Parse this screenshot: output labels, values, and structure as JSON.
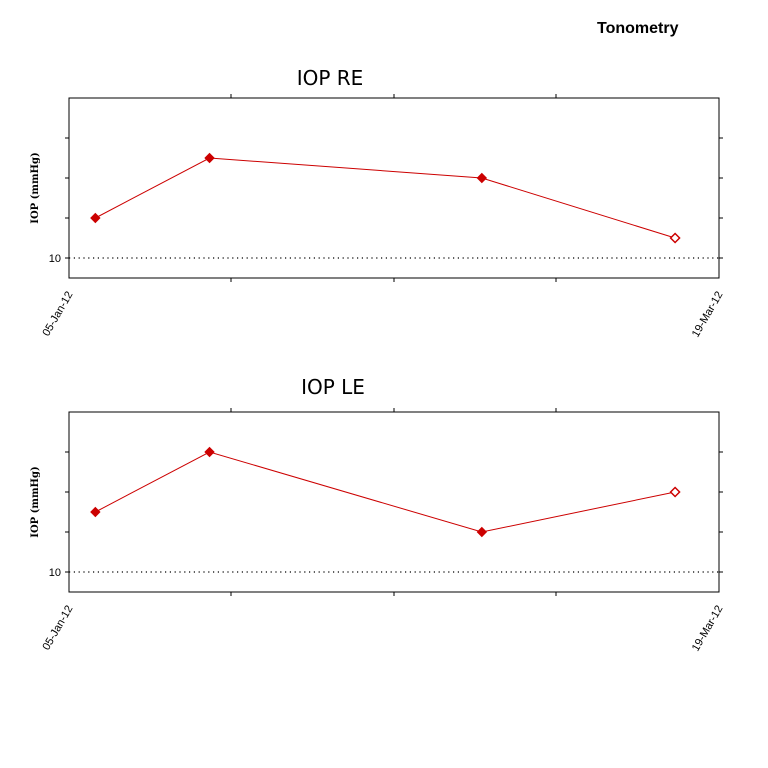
{
  "page_title": "Tonometry",
  "chart_data": [
    {
      "type": "line",
      "title": "IOP RE",
      "xlabel": "",
      "ylabel": "IOP (mmHg)",
      "x_tick_labels": [
        "05-Jan-12",
        "19-Mar-12"
      ],
      "y_tick_labels": [
        "10"
      ],
      "xlim": [
        "05-Jan-12",
        "19-Mar-12"
      ],
      "ylim": [
        9,
        18
      ],
      "reference_line": 10,
      "grid": false,
      "series": [
        {
          "color": "#cc0000",
          "points": [
            {
              "x": "2012-01-08",
              "y": 12,
              "marker": "filled"
            },
            {
              "x": "2012-01-21",
              "y": 15,
              "marker": "filled"
            },
            {
              "x": "2012-02-21",
              "y": 14,
              "marker": "filled"
            },
            {
              "x": "2012-03-14",
              "y": 11,
              "marker": "open"
            }
          ]
        }
      ]
    },
    {
      "type": "line",
      "title": "IOP LE",
      "xlabel": "",
      "ylabel": "IOP (mmHg)",
      "x_tick_labels": [
        "05-Jan-12",
        "19-Mar-12"
      ],
      "y_tick_labels": [
        "10"
      ],
      "xlim": [
        "05-Jan-12",
        "19-Mar-12"
      ],
      "ylim": [
        9,
        18
      ],
      "reference_line": 10,
      "grid": false,
      "series": [
        {
          "color": "#cc0000",
          "points": [
            {
              "x": "2012-01-08",
              "y": 13,
              "marker": "filled"
            },
            {
              "x": "2012-01-21",
              "y": 16,
              "marker": "filled"
            },
            {
              "x": "2012-02-21",
              "y": 12,
              "marker": "filled"
            },
            {
              "x": "2012-03-14",
              "y": 14,
              "marker": "open"
            }
          ]
        }
      ]
    }
  ]
}
